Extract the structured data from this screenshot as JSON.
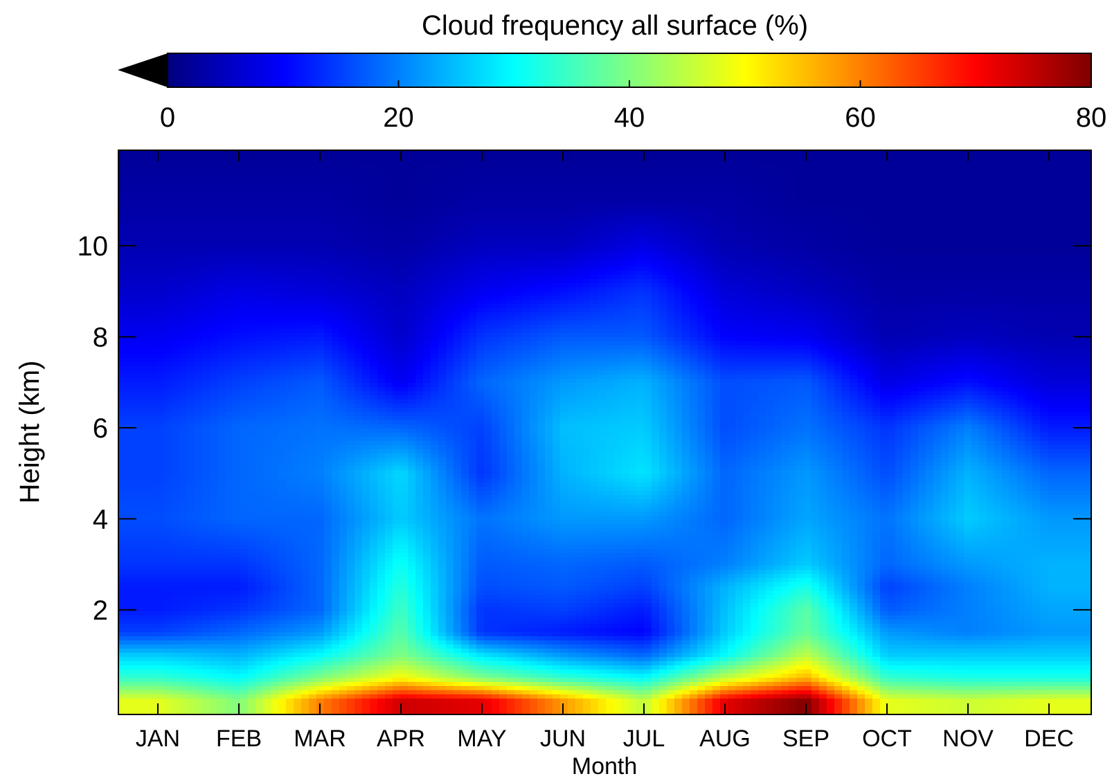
{
  "chart_data": {
    "type": "heatmap",
    "title": "Cloud frequency all surface (%)",
    "xlabel": "Month",
    "ylabel": "Height (km)",
    "x_categories": [
      "JAN",
      "FEB",
      "MAR",
      "APR",
      "MAY",
      "JUN",
      "JUL",
      "AUG",
      "SEP",
      "OCT",
      "NOV",
      "DEC"
    ],
    "y_ticks": [
      2,
      4,
      6,
      8,
      10
    ],
    "ylim": [
      -0.3,
      12.1
    ],
    "colorbar": {
      "ticks": [
        0,
        20,
        40,
        60,
        80
      ],
      "range": [
        0,
        80
      ],
      "extend": "min",
      "colormap": "jet",
      "colormap_stops": [
        "#00007f",
        "#0000ff",
        "#00ffff",
        "#ffff00",
        "#ff0000",
        "#7f0000"
      ]
    },
    "heights": [
      0,
      0.5,
      1,
      1.5,
      2,
      2.5,
      3,
      4,
      5,
      6,
      7,
      8,
      9,
      10,
      11,
      12
    ],
    "values": [
      [
        48,
        40,
        60,
        74,
        72,
        58,
        45,
        72,
        80,
        48,
        46,
        48
      ],
      [
        34,
        30,
        40,
        50,
        40,
        34,
        30,
        45,
        56,
        34,
        32,
        32
      ],
      [
        26,
        24,
        30,
        40,
        28,
        22,
        18,
        30,
        45,
        26,
        26,
        26
      ],
      [
        15,
        18,
        22,
        37,
        14,
        12,
        10,
        26,
        38,
        22,
        20,
        22
      ],
      [
        12,
        14,
        18,
        35,
        14,
        15,
        12,
        25,
        37,
        17,
        20,
        23
      ],
      [
        12,
        12,
        18,
        33,
        16,
        17,
        15,
        24,
        32,
        15,
        20,
        24
      ],
      [
        14,
        14,
        18,
        31,
        17,
        18,
        17,
        20,
        26,
        18,
        22,
        24
      ],
      [
        16,
        18,
        18,
        26,
        19,
        22,
        22,
        18,
        23,
        19,
        26,
        22
      ],
      [
        15,
        18,
        20,
        27,
        14,
        24,
        28,
        18,
        22,
        16,
        24,
        18
      ],
      [
        15,
        18,
        19,
        18,
        15,
        25,
        26,
        16,
        19,
        14,
        20,
        12
      ],
      [
        12,
        15,
        17,
        9,
        18,
        22,
        24,
        16,
        17,
        8,
        11,
        7
      ],
      [
        9,
        11,
        12,
        6,
        14,
        17,
        17,
        10,
        9,
        4,
        5,
        4
      ],
      [
        6,
        8,
        7,
        5,
        9,
        11,
        14,
        7,
        5,
        3,
        3,
        3
      ],
      [
        4,
        4,
        4,
        3,
        5,
        5,
        8,
        4,
        3,
        2,
        2,
        2
      ],
      [
        3,
        3,
        3,
        2,
        3,
        3,
        3,
        3,
        2,
        2,
        2,
        2
      ],
      [
        2,
        2,
        2,
        2,
        2,
        2,
        2,
        2,
        2,
        2,
        2,
        2
      ]
    ]
  }
}
